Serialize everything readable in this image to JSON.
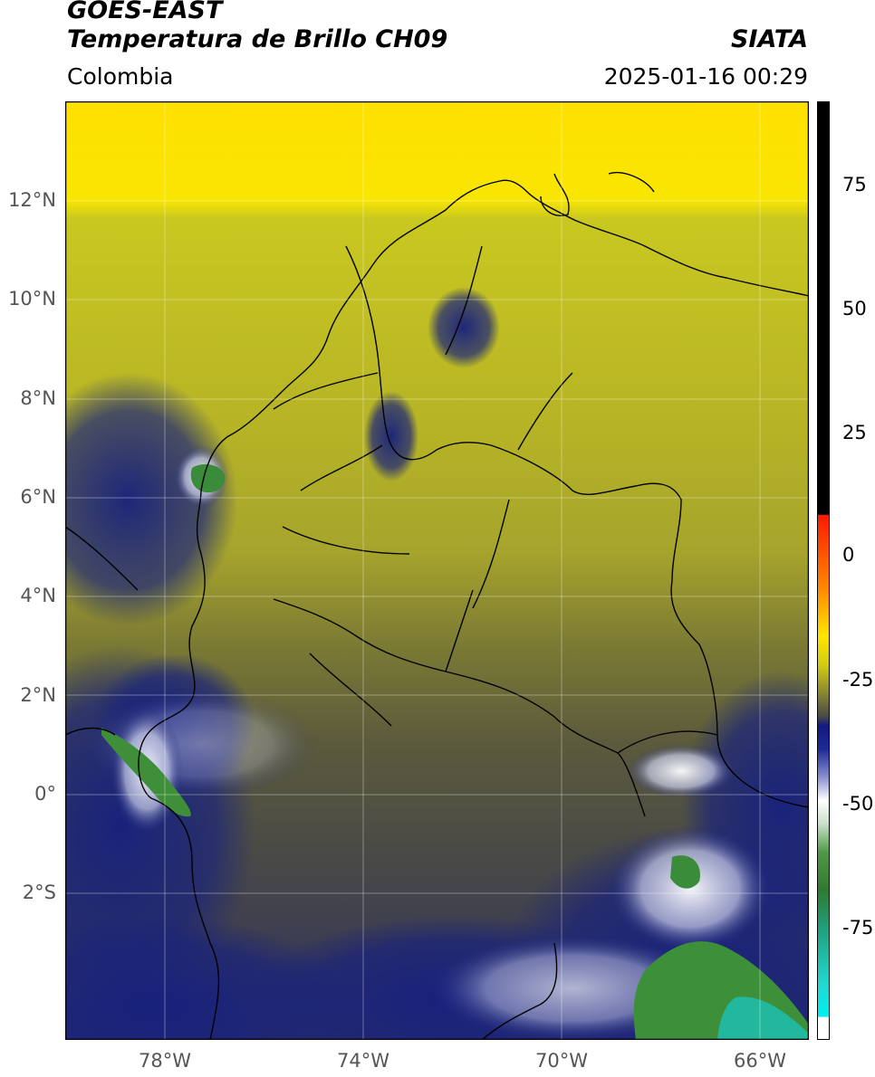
{
  "header": {
    "satellite": "GOES-EAST",
    "product": "Temperatura de Brillo CH09",
    "region": "Colombia",
    "brand": "SIATA",
    "timestamp": "2025-01-16 00:29"
  },
  "map": {
    "lon_range": [
      -80,
      -65
    ],
    "lat_range": [
      -5,
      14
    ],
    "lat_ticks": [
      "12°N",
      "10°N",
      "8°N",
      "6°N",
      "4°N",
      "2°N",
      "0°",
      "2°S"
    ],
    "lon_ticks": [
      "78°W",
      "74°W",
      "70°W",
      "66°W"
    ],
    "colors": {
      "yellow": "#f2e200",
      "olive": "#a8a62c",
      "gray_olive": "#5c5a3a",
      "navy": "#1a1f7a",
      "white": "#ffffff",
      "green": "#3e8f3a",
      "teal": "#22c0a0"
    }
  },
  "colorbar": {
    "range": [
      -90,
      90
    ],
    "ticks": [
      "75",
      "50",
      "25",
      "0",
      "-25",
      "-50",
      "-75"
    ]
  }
}
